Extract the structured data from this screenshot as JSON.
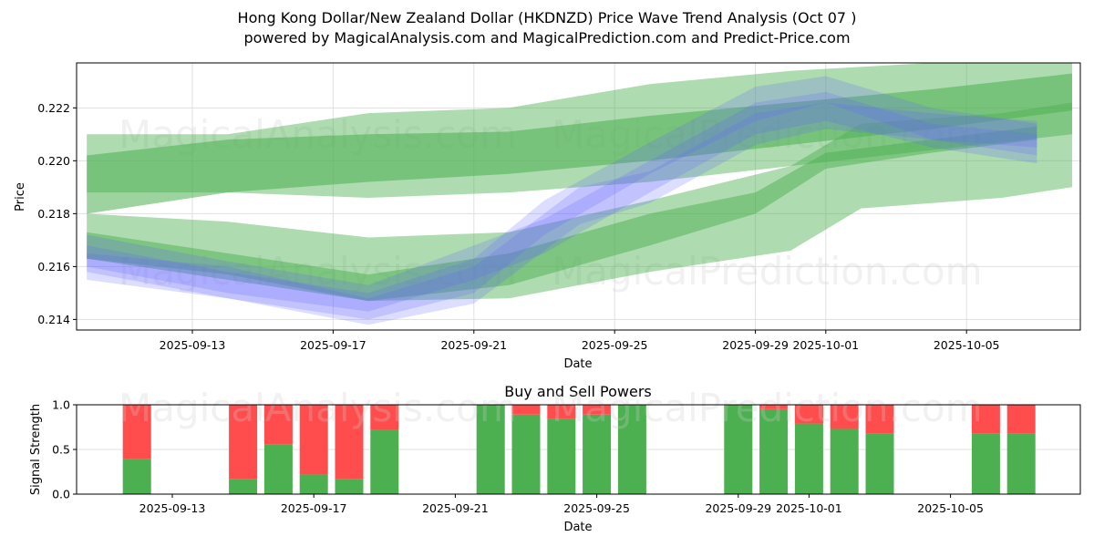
{
  "header": {
    "title": "Hong Kong Dollar/New Zealand Dollar (HKDNZD) Price Wave Trend Analysis (Oct 07 )",
    "subtitle": "powered by MagicalAnalysis.com and MagicalPrediction.com and Predict-Price.com"
  },
  "watermarks": [
    "MagicalAnalysis.com",
    "MagicalPrediction.com"
  ],
  "chart_data": [
    {
      "type": "area",
      "title": "",
      "xlabel": "Date",
      "ylabel": "Price",
      "ylim": [
        0.2136,
        0.2237
      ],
      "xlim": [
        "2025-09-09.7",
        "2025-10-08.2"
      ],
      "grid": true,
      "x_ticks": [
        "2025-09-13",
        "2025-09-17",
        "2025-09-21",
        "2025-09-25",
        "2025-09-29",
        "2025-10-01",
        "2025-10-05"
      ],
      "y_ticks": [
        "0.214",
        "0.216",
        "0.218",
        "0.220",
        "0.222"
      ],
      "colors": {
        "green": "#4caf50",
        "blue": "#6666ff"
      },
      "series": [
        {
          "name": "long-trend-upper-band",
          "color": "green",
          "opacity": 0.45,
          "x": [
            "2025-09-10",
            "2025-09-14",
            "2025-09-18",
            "2025-09-22",
            "2025-09-26",
            "2025-09-30",
            "2025-10-04",
            "2025-10-08"
          ],
          "upper": [
            0.221,
            0.221,
            0.2218,
            0.222,
            0.2229,
            0.2234,
            0.2237,
            0.2237
          ],
          "lower": [
            0.2188,
            0.2188,
            0.2186,
            0.2188,
            0.2192,
            0.2198,
            0.2204,
            0.221
          ]
        },
        {
          "name": "long-trend-upper-core",
          "color": "green",
          "opacity": 0.55,
          "x": [
            "2025-09-10",
            "2025-09-14",
            "2025-09-18",
            "2025-09-22",
            "2025-09-26",
            "2025-09-30",
            "2025-10-04",
            "2025-10-08"
          ],
          "upper": [
            0.2202,
            0.2208,
            0.221,
            0.2211,
            0.2217,
            0.2222,
            0.2227,
            0.2233
          ],
          "lower": [
            0.218,
            0.2188,
            0.2192,
            0.2195,
            0.22,
            0.2206,
            0.2212,
            0.2219
          ]
        },
        {
          "name": "long-trend-lower-band",
          "color": "green",
          "opacity": 0.45,
          "x": [
            "2025-09-10",
            "2025-09-14",
            "2025-09-18",
            "2025-09-22",
            "2025-09-26",
            "2025-09-30",
            "2025-10-02",
            "2025-10-06",
            "2025-10-08"
          ],
          "upper": [
            0.218,
            0.2177,
            0.2171,
            0.2173,
            0.2185,
            0.2198,
            0.2214,
            0.2218,
            0.2222
          ],
          "lower": [
            0.2163,
            0.2157,
            0.2147,
            0.2148,
            0.2158,
            0.2166,
            0.2182,
            0.2186,
            0.219
          ]
        },
        {
          "name": "short-wave-green",
          "color": "green",
          "opacity": 0.5,
          "x": [
            "2025-09-10",
            "2025-09-14",
            "2025-09-18",
            "2025-09-22",
            "2025-09-26",
            "2025-09-29",
            "2025-10-01",
            "2025-10-04",
            "2025-10-07"
          ],
          "upper": [
            0.2173,
            0.2165,
            0.2157,
            0.2165,
            0.218,
            0.2188,
            0.2203,
            0.2208,
            0.2213
          ],
          "lower": [
            0.2163,
            0.2155,
            0.2147,
            0.2153,
            0.2168,
            0.218,
            0.2197,
            0.2203,
            0.2208
          ]
        },
        {
          "name": "short-wave-blue-1",
          "color": "blue",
          "opacity": 0.22,
          "x": [
            "2025-09-10",
            "2025-09-14",
            "2025-09-18",
            "2025-09-21",
            "2025-09-23",
            "2025-09-26",
            "2025-09-29",
            "2025-10-01",
            "2025-10-04",
            "2025-10-07"
          ],
          "upper": [
            0.2168,
            0.2158,
            0.215,
            0.2163,
            0.2185,
            0.2207,
            0.2228,
            0.2232,
            0.222,
            0.2214
          ],
          "lower": [
            0.2158,
            0.2148,
            0.214,
            0.215,
            0.2172,
            0.2195,
            0.2215,
            0.2222,
            0.2208,
            0.2202
          ]
        },
        {
          "name": "short-wave-blue-2",
          "color": "blue",
          "opacity": 0.22,
          "x": [
            "2025-09-10",
            "2025-09-14",
            "2025-09-18",
            "2025-09-21",
            "2025-09-23",
            "2025-09-26",
            "2025-09-29",
            "2025-10-01",
            "2025-10-04",
            "2025-10-07"
          ],
          "upper": [
            0.2172,
            0.2162,
            0.2153,
            0.2168,
            0.2178,
            0.22,
            0.2222,
            0.2226,
            0.2214,
            0.221
          ],
          "lower": [
            0.216,
            0.215,
            0.2143,
            0.2155,
            0.2165,
            0.2188,
            0.221,
            0.2215,
            0.2205,
            0.2199
          ]
        },
        {
          "name": "short-wave-blue-3",
          "color": "blue",
          "opacity": 0.22,
          "x": [
            "2025-09-10",
            "2025-09-14",
            "2025-09-18",
            "2025-09-21",
            "2025-09-24",
            "2025-09-26",
            "2025-09-29",
            "2025-10-01",
            "2025-10-04",
            "2025-10-07"
          ],
          "upper": [
            0.2165,
            0.216,
            0.2148,
            0.216,
            0.219,
            0.2196,
            0.2218,
            0.2222,
            0.2218,
            0.2215
          ],
          "lower": [
            0.2155,
            0.2148,
            0.2138,
            0.2146,
            0.2176,
            0.2184,
            0.2206,
            0.2212,
            0.2208,
            0.2205
          ]
        }
      ]
    },
    {
      "type": "bar",
      "title": "Buy and Sell Powers",
      "xlabel": "Date",
      "ylabel": "Signal Strength",
      "ylim": [
        0,
        1
      ],
      "y_ticks": [
        "0.0",
        "0.5",
        "1.0"
      ],
      "x_ticks": [
        "2025-09-13",
        "2025-09-17",
        "2025-09-21",
        "2025-09-25",
        "2025-09-29",
        "2025-10-01",
        "2025-10-05"
      ],
      "colors": {
        "buy": "#4caf50",
        "sell": "#ff4c4c"
      },
      "categories": [
        "2025-09-12",
        "2025-09-15",
        "2025-09-16",
        "2025-09-17",
        "2025-09-18",
        "2025-09-19",
        "2025-09-22",
        "2025-09-23",
        "2025-09-24",
        "2025-09-25",
        "2025-09-26",
        "2025-09-29",
        "2025-09-30",
        "2025-10-01",
        "2025-10-02",
        "2025-10-03",
        "2025-10-06",
        "2025-10-07"
      ],
      "series": [
        {
          "name": "Buy",
          "values": [
            0.39,
            0.17,
            0.56,
            0.22,
            0.17,
            0.72,
            1.0,
            0.89,
            0.84,
            0.89,
            1.0,
            1.0,
            0.95,
            0.79,
            0.73,
            0.68,
            0.68,
            0.68
          ]
        },
        {
          "name": "Sell",
          "values": [
            0.61,
            0.83,
            0.44,
            0.78,
            0.83,
            0.28,
            0.0,
            0.11,
            0.16,
            0.11,
            0.0,
            0.0,
            0.05,
            0.21,
            0.27,
            0.32,
            0.32,
            0.32
          ]
        }
      ]
    }
  ]
}
